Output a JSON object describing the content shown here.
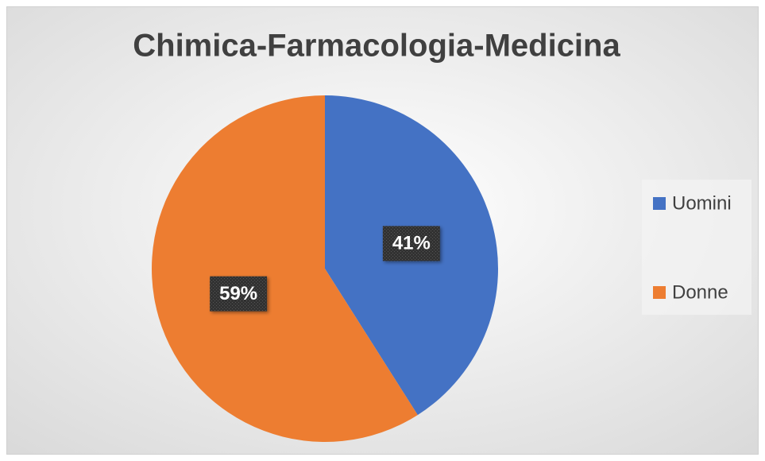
{
  "chart_data": {
    "type": "pie",
    "title": "Chimica-Farmacologia-Medicina",
    "categories": [
      "Uomini",
      "Donne"
    ],
    "values": [
      41,
      59
    ],
    "value_labels": [
      "41%",
      "59%"
    ],
    "colors": [
      "#4472c4",
      "#ed7d31"
    ],
    "legend": "right"
  }
}
